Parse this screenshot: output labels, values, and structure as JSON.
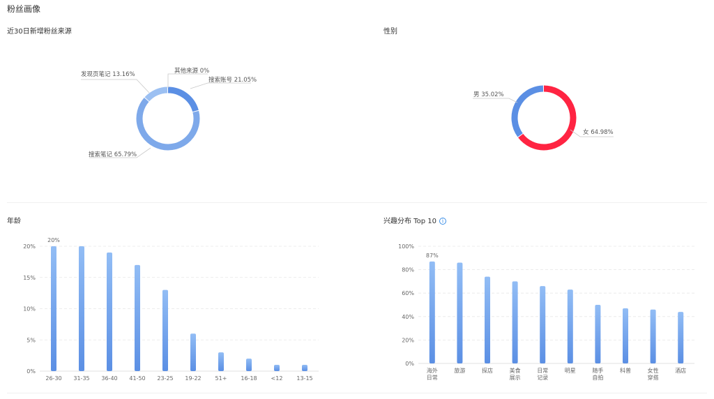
{
  "page": {
    "title": "粉丝画像"
  },
  "panels": {
    "source": {
      "title": "近30日新增粉丝来源"
    },
    "gender": {
      "title": "性别"
    },
    "age": {
      "title": "年龄"
    },
    "interest": {
      "title": "兴趣分布 Top 10"
    }
  },
  "colors": {
    "blue": "#5b8fe4",
    "light_blue": "#7ea9ea",
    "pale_blue": "#9cc0f2",
    "red": "#ff2442",
    "grid": "#e3e3e3"
  },
  "chart_data": [
    {
      "id": "source",
      "type": "pie",
      "title": "近30日新增粉丝来源",
      "slices": [
        {
          "label": "搜索账号",
          "value": 21.05,
          "display": "21.05%",
          "color": "#5b8fe4"
        },
        {
          "label": "搜索笔记",
          "value": 65.79,
          "display": "65.79%",
          "color": "#7ea9ea"
        },
        {
          "label": "发现页笔记",
          "value": 13.16,
          "display": "13.16%",
          "color": "#9cc0f2"
        },
        {
          "label": "其他来源",
          "value": 0,
          "display": "0%",
          "color": "#5b8fe4"
        }
      ]
    },
    {
      "id": "gender",
      "type": "pie",
      "title": "性别",
      "slices": [
        {
          "label": "女",
          "value": 64.98,
          "display": "64.98%",
          "color": "#ff2442"
        },
        {
          "label": "男",
          "value": 35.02,
          "display": "35.02%",
          "color": "#5b8fe4"
        }
      ]
    },
    {
      "id": "age",
      "type": "bar",
      "title": "年龄",
      "categories": [
        "26-30",
        "31-35",
        "36-40",
        "41-50",
        "23-25",
        "19-22",
        "51+",
        "16-18",
        "<12",
        "13-15"
      ],
      "values": [
        20,
        20,
        19,
        17,
        13,
        6,
        3,
        2,
        1,
        1
      ],
      "ylim": [
        0,
        20
      ],
      "yticks": [
        "0%",
        "5%",
        "10%",
        "15%",
        "20%"
      ],
      "data_labels": [
        "20%"
      ],
      "grid": true
    },
    {
      "id": "interest",
      "type": "bar",
      "title": "兴趣分布 Top 10",
      "categories": [
        "海外\n日常",
        "旅游",
        "探店",
        "美食\n展示",
        "日常\n记录",
        "明星",
        "随手\n自拍",
        "科普",
        "女性\n穿搭",
        "酒店"
      ],
      "values": [
        87,
        86,
        74,
        70,
        66,
        63,
        50,
        47,
        46,
        44
      ],
      "ylim": [
        0,
        100
      ],
      "yticks": [
        "0%",
        "20%",
        "40%",
        "60%",
        "80%",
        "100%"
      ],
      "data_labels": [
        "87%"
      ],
      "grid": true
    }
  ]
}
